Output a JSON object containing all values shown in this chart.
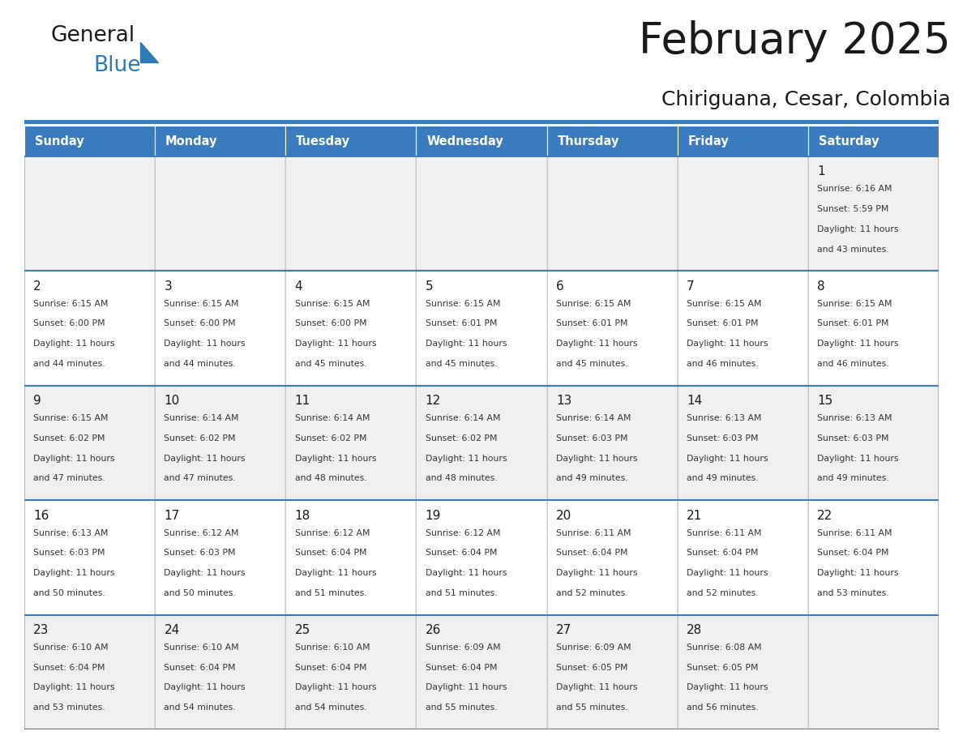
{
  "title": "February 2025",
  "subtitle": "Chiriguana, Cesar, Colombia",
  "header_color": "#3A7BBF",
  "header_text_color": "#FFFFFF",
  "background_color": "#FFFFFF",
  "cell_bg_light": "#F0F0F0",
  "cell_bg_white": "#FFFFFF",
  "border_color": "#3A7BBF",
  "text_color": "#333333",
  "day_number_color": "#1a1a1a",
  "day_names": [
    "Sunday",
    "Monday",
    "Tuesday",
    "Wednesday",
    "Thursday",
    "Friday",
    "Saturday"
  ],
  "days_data": [
    {
      "day": 1,
      "col": 6,
      "row": 0,
      "sunrise": "6:16 AM",
      "sunset": "5:59 PM",
      "daylight_line1": "Daylight: 11 hours",
      "daylight_line2": "and 43 minutes."
    },
    {
      "day": 2,
      "col": 0,
      "row": 1,
      "sunrise": "6:15 AM",
      "sunset": "6:00 PM",
      "daylight_line1": "Daylight: 11 hours",
      "daylight_line2": "and 44 minutes."
    },
    {
      "day": 3,
      "col": 1,
      "row": 1,
      "sunrise": "6:15 AM",
      "sunset": "6:00 PM",
      "daylight_line1": "Daylight: 11 hours",
      "daylight_line2": "and 44 minutes."
    },
    {
      "day": 4,
      "col": 2,
      "row": 1,
      "sunrise": "6:15 AM",
      "sunset": "6:00 PM",
      "daylight_line1": "Daylight: 11 hours",
      "daylight_line2": "and 45 minutes."
    },
    {
      "day": 5,
      "col": 3,
      "row": 1,
      "sunrise": "6:15 AM",
      "sunset": "6:01 PM",
      "daylight_line1": "Daylight: 11 hours",
      "daylight_line2": "and 45 minutes."
    },
    {
      "day": 6,
      "col": 4,
      "row": 1,
      "sunrise": "6:15 AM",
      "sunset": "6:01 PM",
      "daylight_line1": "Daylight: 11 hours",
      "daylight_line2": "and 45 minutes."
    },
    {
      "day": 7,
      "col": 5,
      "row": 1,
      "sunrise": "6:15 AM",
      "sunset": "6:01 PM",
      "daylight_line1": "Daylight: 11 hours",
      "daylight_line2": "and 46 minutes."
    },
    {
      "day": 8,
      "col": 6,
      "row": 1,
      "sunrise": "6:15 AM",
      "sunset": "6:01 PM",
      "daylight_line1": "Daylight: 11 hours",
      "daylight_line2": "and 46 minutes."
    },
    {
      "day": 9,
      "col": 0,
      "row": 2,
      "sunrise": "6:15 AM",
      "sunset": "6:02 PM",
      "daylight_line1": "Daylight: 11 hours",
      "daylight_line2": "and 47 minutes."
    },
    {
      "day": 10,
      "col": 1,
      "row": 2,
      "sunrise": "6:14 AM",
      "sunset": "6:02 PM",
      "daylight_line1": "Daylight: 11 hours",
      "daylight_line2": "and 47 minutes."
    },
    {
      "day": 11,
      "col": 2,
      "row": 2,
      "sunrise": "6:14 AM",
      "sunset": "6:02 PM",
      "daylight_line1": "Daylight: 11 hours",
      "daylight_line2": "and 48 minutes."
    },
    {
      "day": 12,
      "col": 3,
      "row": 2,
      "sunrise": "6:14 AM",
      "sunset": "6:02 PM",
      "daylight_line1": "Daylight: 11 hours",
      "daylight_line2": "and 48 minutes."
    },
    {
      "day": 13,
      "col": 4,
      "row": 2,
      "sunrise": "6:14 AM",
      "sunset": "6:03 PM",
      "daylight_line1": "Daylight: 11 hours",
      "daylight_line2": "and 49 minutes."
    },
    {
      "day": 14,
      "col": 5,
      "row": 2,
      "sunrise": "6:13 AM",
      "sunset": "6:03 PM",
      "daylight_line1": "Daylight: 11 hours",
      "daylight_line2": "and 49 minutes."
    },
    {
      "day": 15,
      "col": 6,
      "row": 2,
      "sunrise": "6:13 AM",
      "sunset": "6:03 PM",
      "daylight_line1": "Daylight: 11 hours",
      "daylight_line2": "and 49 minutes."
    },
    {
      "day": 16,
      "col": 0,
      "row": 3,
      "sunrise": "6:13 AM",
      "sunset": "6:03 PM",
      "daylight_line1": "Daylight: 11 hours",
      "daylight_line2": "and 50 minutes."
    },
    {
      "day": 17,
      "col": 1,
      "row": 3,
      "sunrise": "6:12 AM",
      "sunset": "6:03 PM",
      "daylight_line1": "Daylight: 11 hours",
      "daylight_line2": "and 50 minutes."
    },
    {
      "day": 18,
      "col": 2,
      "row": 3,
      "sunrise": "6:12 AM",
      "sunset": "6:04 PM",
      "daylight_line1": "Daylight: 11 hours",
      "daylight_line2": "and 51 minutes."
    },
    {
      "day": 19,
      "col": 3,
      "row": 3,
      "sunrise": "6:12 AM",
      "sunset": "6:04 PM",
      "daylight_line1": "Daylight: 11 hours",
      "daylight_line2": "and 51 minutes."
    },
    {
      "day": 20,
      "col": 4,
      "row": 3,
      "sunrise": "6:11 AM",
      "sunset": "6:04 PM",
      "daylight_line1": "Daylight: 11 hours",
      "daylight_line2": "and 52 minutes."
    },
    {
      "day": 21,
      "col": 5,
      "row": 3,
      "sunrise": "6:11 AM",
      "sunset": "6:04 PM",
      "daylight_line1": "Daylight: 11 hours",
      "daylight_line2": "and 52 minutes."
    },
    {
      "day": 22,
      "col": 6,
      "row": 3,
      "sunrise": "6:11 AM",
      "sunset": "6:04 PM",
      "daylight_line1": "Daylight: 11 hours",
      "daylight_line2": "and 53 minutes."
    },
    {
      "day": 23,
      "col": 0,
      "row": 4,
      "sunrise": "6:10 AM",
      "sunset": "6:04 PM",
      "daylight_line1": "Daylight: 11 hours",
      "daylight_line2": "and 53 minutes."
    },
    {
      "day": 24,
      "col": 1,
      "row": 4,
      "sunrise": "6:10 AM",
      "sunset": "6:04 PM",
      "daylight_line1": "Daylight: 11 hours",
      "daylight_line2": "and 54 minutes."
    },
    {
      "day": 25,
      "col": 2,
      "row": 4,
      "sunrise": "6:10 AM",
      "sunset": "6:04 PM",
      "daylight_line1": "Daylight: 11 hours",
      "daylight_line2": "and 54 minutes."
    },
    {
      "day": 26,
      "col": 3,
      "row": 4,
      "sunrise": "6:09 AM",
      "sunset": "6:04 PM",
      "daylight_line1": "Daylight: 11 hours",
      "daylight_line2": "and 55 minutes."
    },
    {
      "day": 27,
      "col": 4,
      "row": 4,
      "sunrise": "6:09 AM",
      "sunset": "6:05 PM",
      "daylight_line1": "Daylight: 11 hours",
      "daylight_line2": "and 55 minutes."
    },
    {
      "day": 28,
      "col": 5,
      "row": 4,
      "sunrise": "6:08 AM",
      "sunset": "6:05 PM",
      "daylight_line1": "Daylight: 11 hours",
      "daylight_line2": "and 56 minutes."
    }
  ],
  "num_rows": 5,
  "num_cols": 7
}
